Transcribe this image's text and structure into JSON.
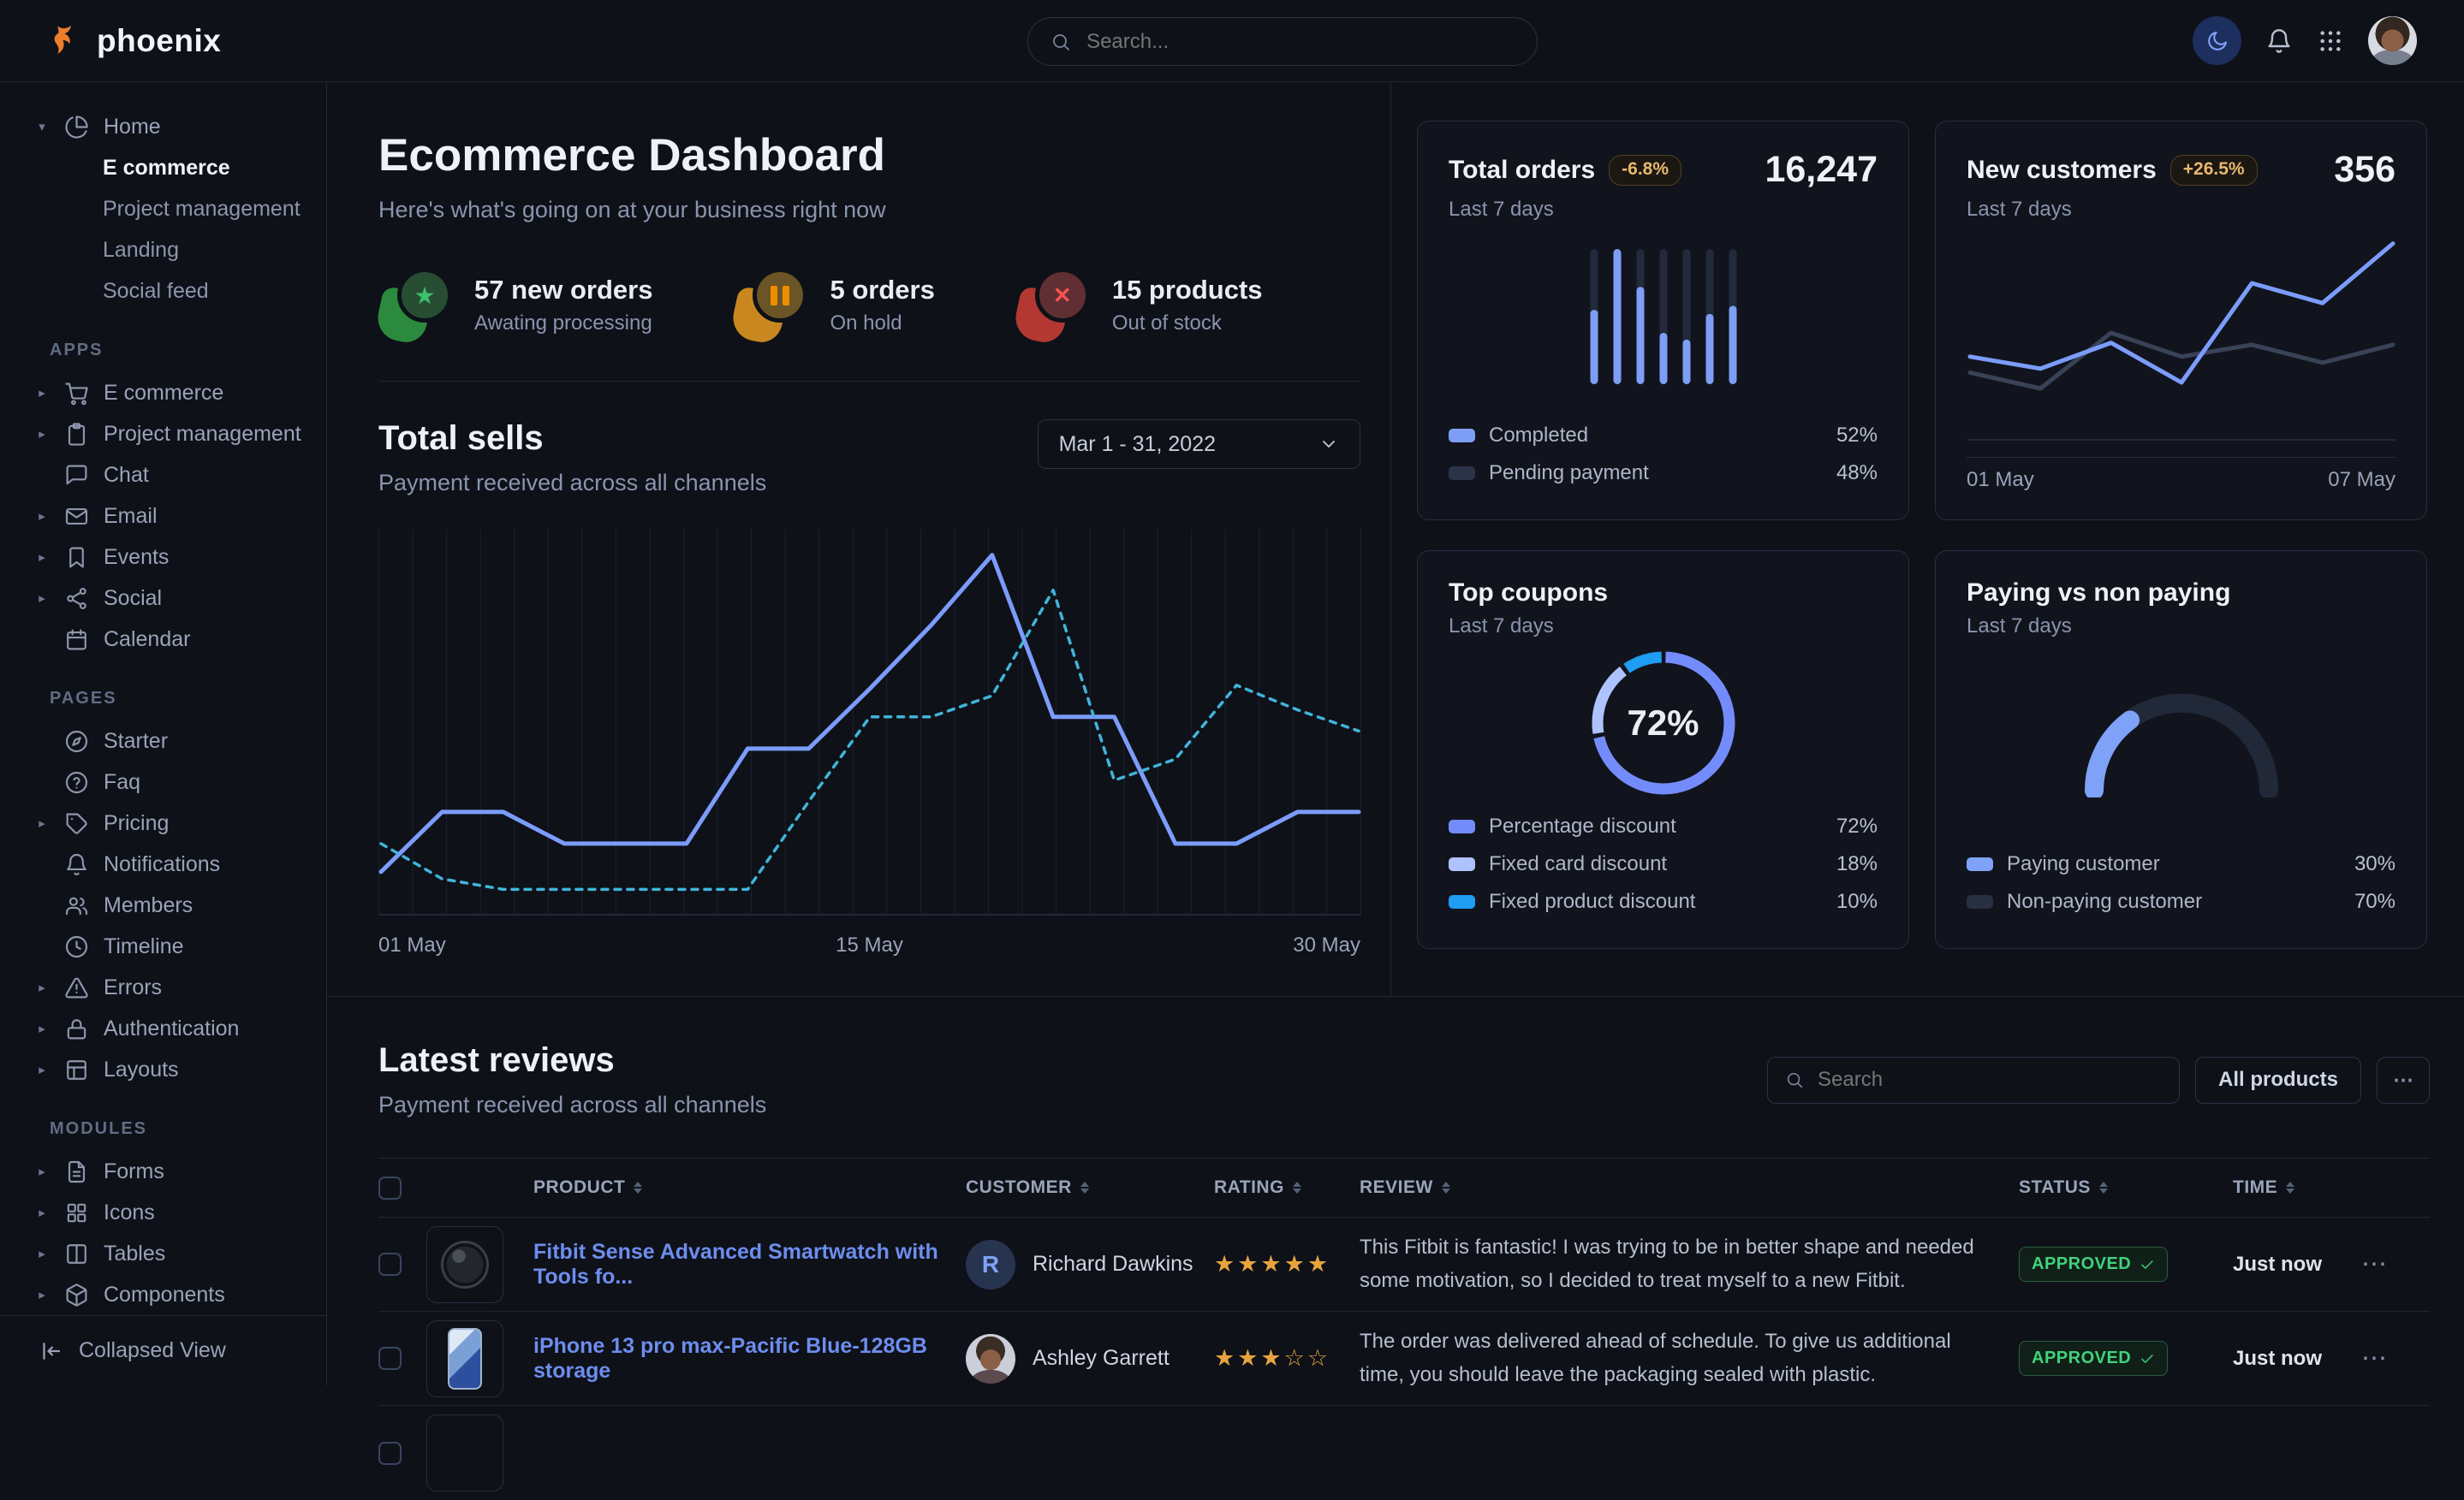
{
  "ui": {
    "ellipsis": "⋯"
  },
  "topbar": {
    "brand": "phoenix",
    "search_placeholder": "Search...",
    "icons": [
      "moon-icon",
      "bell-icon",
      "apps-grid-icon",
      "avatar"
    ]
  },
  "sidebar": {
    "home_label": "Home",
    "home_icon": "pie-chart-icon",
    "home_children": [
      {
        "label": "E commerce",
        "active": true
      },
      {
        "label": "Project management"
      },
      {
        "label": "Landing"
      },
      {
        "label": "Social feed"
      }
    ],
    "sections": [
      {
        "title": "APPS",
        "items": [
          {
            "label": "E commerce",
            "icon": "cart-icon",
            "caret": true
          },
          {
            "label": "Project management",
            "icon": "clipboard-icon",
            "caret": true
          },
          {
            "label": "Chat",
            "icon": "chat-icon",
            "caret": false
          },
          {
            "label": "Email",
            "icon": "mail-icon",
            "caret": true
          },
          {
            "label": "Events",
            "icon": "bookmark-icon",
            "caret": true
          },
          {
            "label": "Social",
            "icon": "share-icon",
            "caret": true
          },
          {
            "label": "Calendar",
            "icon": "calendar-icon",
            "caret": false
          }
        ]
      },
      {
        "title": "PAGES",
        "items": [
          {
            "label": "Starter",
            "icon": "compass-icon",
            "caret": false
          },
          {
            "label": "Faq",
            "icon": "help-circle-icon",
            "caret": false
          },
          {
            "label": "Pricing",
            "icon": "tag-icon",
            "caret": true
          },
          {
            "label": "Notifications",
            "icon": "bell-icon",
            "caret": false
          },
          {
            "label": "Members",
            "icon": "users-icon",
            "caret": false
          },
          {
            "label": "Timeline",
            "icon": "clock-icon",
            "caret": false
          },
          {
            "label": "Errors",
            "icon": "alert-triangle-icon",
            "caret": true
          },
          {
            "label": "Authentication",
            "icon": "lock-icon",
            "caret": true
          },
          {
            "label": "Layouts",
            "icon": "layout-icon",
            "caret": true
          }
        ]
      },
      {
        "title": "MODULES",
        "items": [
          {
            "label": "Forms",
            "icon": "file-text-icon",
            "caret": true
          },
          {
            "label": "Icons",
            "icon": "grid-icon",
            "caret": true
          },
          {
            "label": "Tables",
            "icon": "columns-icon",
            "caret": true
          },
          {
            "label": "Components",
            "icon": "box-icon",
            "caret": true
          }
        ]
      }
    ],
    "collapse_label": "Collapsed View"
  },
  "header": {
    "title": "Ecommerce Dashboard",
    "subtitle": "Here's what's going on at your business right now",
    "stats": [
      {
        "value": "57 new orders",
        "sub": "Awating processing",
        "icon": "star-icon",
        "accent": "#3cc06a",
        "blob": "#2b8a3e",
        "circle_bg": "#274e33"
      },
      {
        "value": "5 orders",
        "sub": "On hold",
        "icon": "pause-icon",
        "accent": "#f08c00",
        "blob": "#c9881f",
        "circle_bg": "#6b5426"
      },
      {
        "value": "15 products",
        "sub": "Out of stock",
        "icon": "x-icon",
        "accent": "#fa5252",
        "blob": "#b33831",
        "circle_bg": "#5f2f33"
      }
    ]
  },
  "total_sells": {
    "title": "Total sells",
    "subtitle": "Payment received across all channels",
    "date_range": "Mar 1 - 31, 2022",
    "x_ticks": [
      "01 May",
      "15 May",
      "30 May"
    ]
  },
  "cards": {
    "total_orders": {
      "title": "Total orders",
      "badge": "-6.8%",
      "value": "16,247",
      "period": "Last 7 days",
      "legend": [
        {
          "label": "Completed",
          "value": "52%"
        },
        {
          "label": "Pending payment",
          "value": "48%"
        }
      ]
    },
    "new_customers": {
      "title": "New customers",
      "badge": "+26.5%",
      "value": "356",
      "period": "Last 7 days",
      "x_ticks": [
        "01 May",
        "07 May"
      ]
    },
    "top_coupons": {
      "title": "Top coupons",
      "period": "Last 7 days",
      "center_label": "72%",
      "legend": [
        {
          "label": "Percentage discount",
          "value": "72%"
        },
        {
          "label": "Fixed card discount",
          "value": "18%"
        },
        {
          "label": "Fixed product discount",
          "value": "10%"
        }
      ]
    },
    "paying": {
      "title": "Paying vs non paying",
      "period": "Last 7 days",
      "legend": [
        {
          "label": "Paying customer",
          "value": "30%"
        },
        {
          "label": "Non-paying customer",
          "value": "70%"
        }
      ]
    }
  },
  "reviews": {
    "title": "Latest reviews",
    "subtitle": "Payment received across all channels",
    "search_placeholder": "Search",
    "filter_label": "All products",
    "columns": [
      "PRODUCT",
      "CUSTOMER",
      "RATING",
      "REVIEW",
      "STATUS",
      "TIME"
    ],
    "rows": [
      {
        "product": "Fitbit Sense Advanced Smartwatch with Tools fo...",
        "customer": "Richard Dawkins",
        "avatar_initial": "R",
        "rating": 5,
        "review": "This Fitbit is fantastic! I was trying to be in better shape and needed some motivation, so I decided to treat myself to a new Fitbit.",
        "status": "APPROVED",
        "time": "Just now"
      },
      {
        "product": "iPhone 13 pro max-Pacific Blue-128GB storage",
        "customer": "Ashley Garrett",
        "avatar_initial": "",
        "rating": 3,
        "review": "The order was delivered ahead of schedule. To give us additional time, you should leave the packaging sealed with plastic.",
        "status": "APPROVED",
        "time": "Just now"
      }
    ]
  },
  "chart_data": [
    {
      "id": "total-sells",
      "type": "line",
      "title": "Total sells",
      "x_ticks": [
        "01 May",
        "15 May",
        "30 May"
      ],
      "ylim": [
        0,
        105
      ],
      "grid": "vertical",
      "legend_position": "none",
      "series": [
        {
          "name": "current",
          "style": "solid",
          "color": "#7b9cfb",
          "values": [
            10,
            27,
            27,
            18,
            18,
            18,
            45,
            45,
            62,
            80,
            100,
            54,
            54,
            18,
            18,
            27,
            27
          ]
        },
        {
          "name": "previous",
          "style": "dashed",
          "color": "#41b4da",
          "values": [
            18,
            8,
            5,
            5,
            5,
            5,
            5,
            30,
            54,
            54,
            60,
            90,
            36,
            42,
            63,
            56,
            50
          ]
        }
      ]
    },
    {
      "id": "total-orders",
      "type": "bar",
      "title": "Total orders",
      "categories": [
        "1",
        "2",
        "3",
        "4",
        "5",
        "6",
        "7"
      ],
      "values": [
        55,
        100,
        72,
        38,
        33,
        52,
        58
      ],
      "track": 100,
      "bar_color": "#7e9ef6",
      "track_color": "#222a3c",
      "legend": [
        {
          "label": "Completed",
          "value": 52,
          "color": "#7e9ef6"
        },
        {
          "label": "Pending payment",
          "value": 48,
          "color": "#2a3347"
        }
      ]
    },
    {
      "id": "new-customers",
      "type": "line",
      "title": "New customers",
      "x_ticks": [
        "01 May",
        "07 May"
      ],
      "ylim": [
        0,
        100
      ],
      "grid": "off",
      "series": [
        {
          "name": "previous",
          "style": "solid",
          "color": "#394257",
          "values": [
            30,
            22,
            50,
            38,
            44,
            35,
            44
          ]
        },
        {
          "name": "current",
          "style": "solid",
          "color": "#7b9cfb",
          "values": [
            38,
            32,
            45,
            25,
            75,
            65,
            95
          ]
        }
      ]
    },
    {
      "id": "top-coupons",
      "type": "pie",
      "donut": true,
      "title": "Top coupons",
      "center_label": "72%",
      "slices": [
        {
          "label": "Percentage discount",
          "value": 72,
          "color": "#748cfb"
        },
        {
          "label": "Fixed card discount",
          "value": 18,
          "color": "#aec3fd"
        },
        {
          "label": "Fixed product discount",
          "value": 10,
          "color": "#1e9df2"
        }
      ]
    },
    {
      "id": "paying-gauge",
      "type": "gauge",
      "title": "Paying vs non paying",
      "value": 30,
      "max": 100,
      "color": "#7fa2f8",
      "track_color": "#212838",
      "slices": [
        {
          "label": "Paying customer",
          "value": 30,
          "color": "#7fa2f8"
        },
        {
          "label": "Non-paying customer",
          "value": 70,
          "color": "#272f41"
        }
      ]
    }
  ],
  "colors": {
    "accent": "#3874ff",
    "line_blue": "#7b9cfb",
    "dashed_teal": "#41b4da",
    "warning_badge": "#e8b86d",
    "success": "#41d27d",
    "link": "#6d8dee",
    "star": "#e8a33d"
  }
}
